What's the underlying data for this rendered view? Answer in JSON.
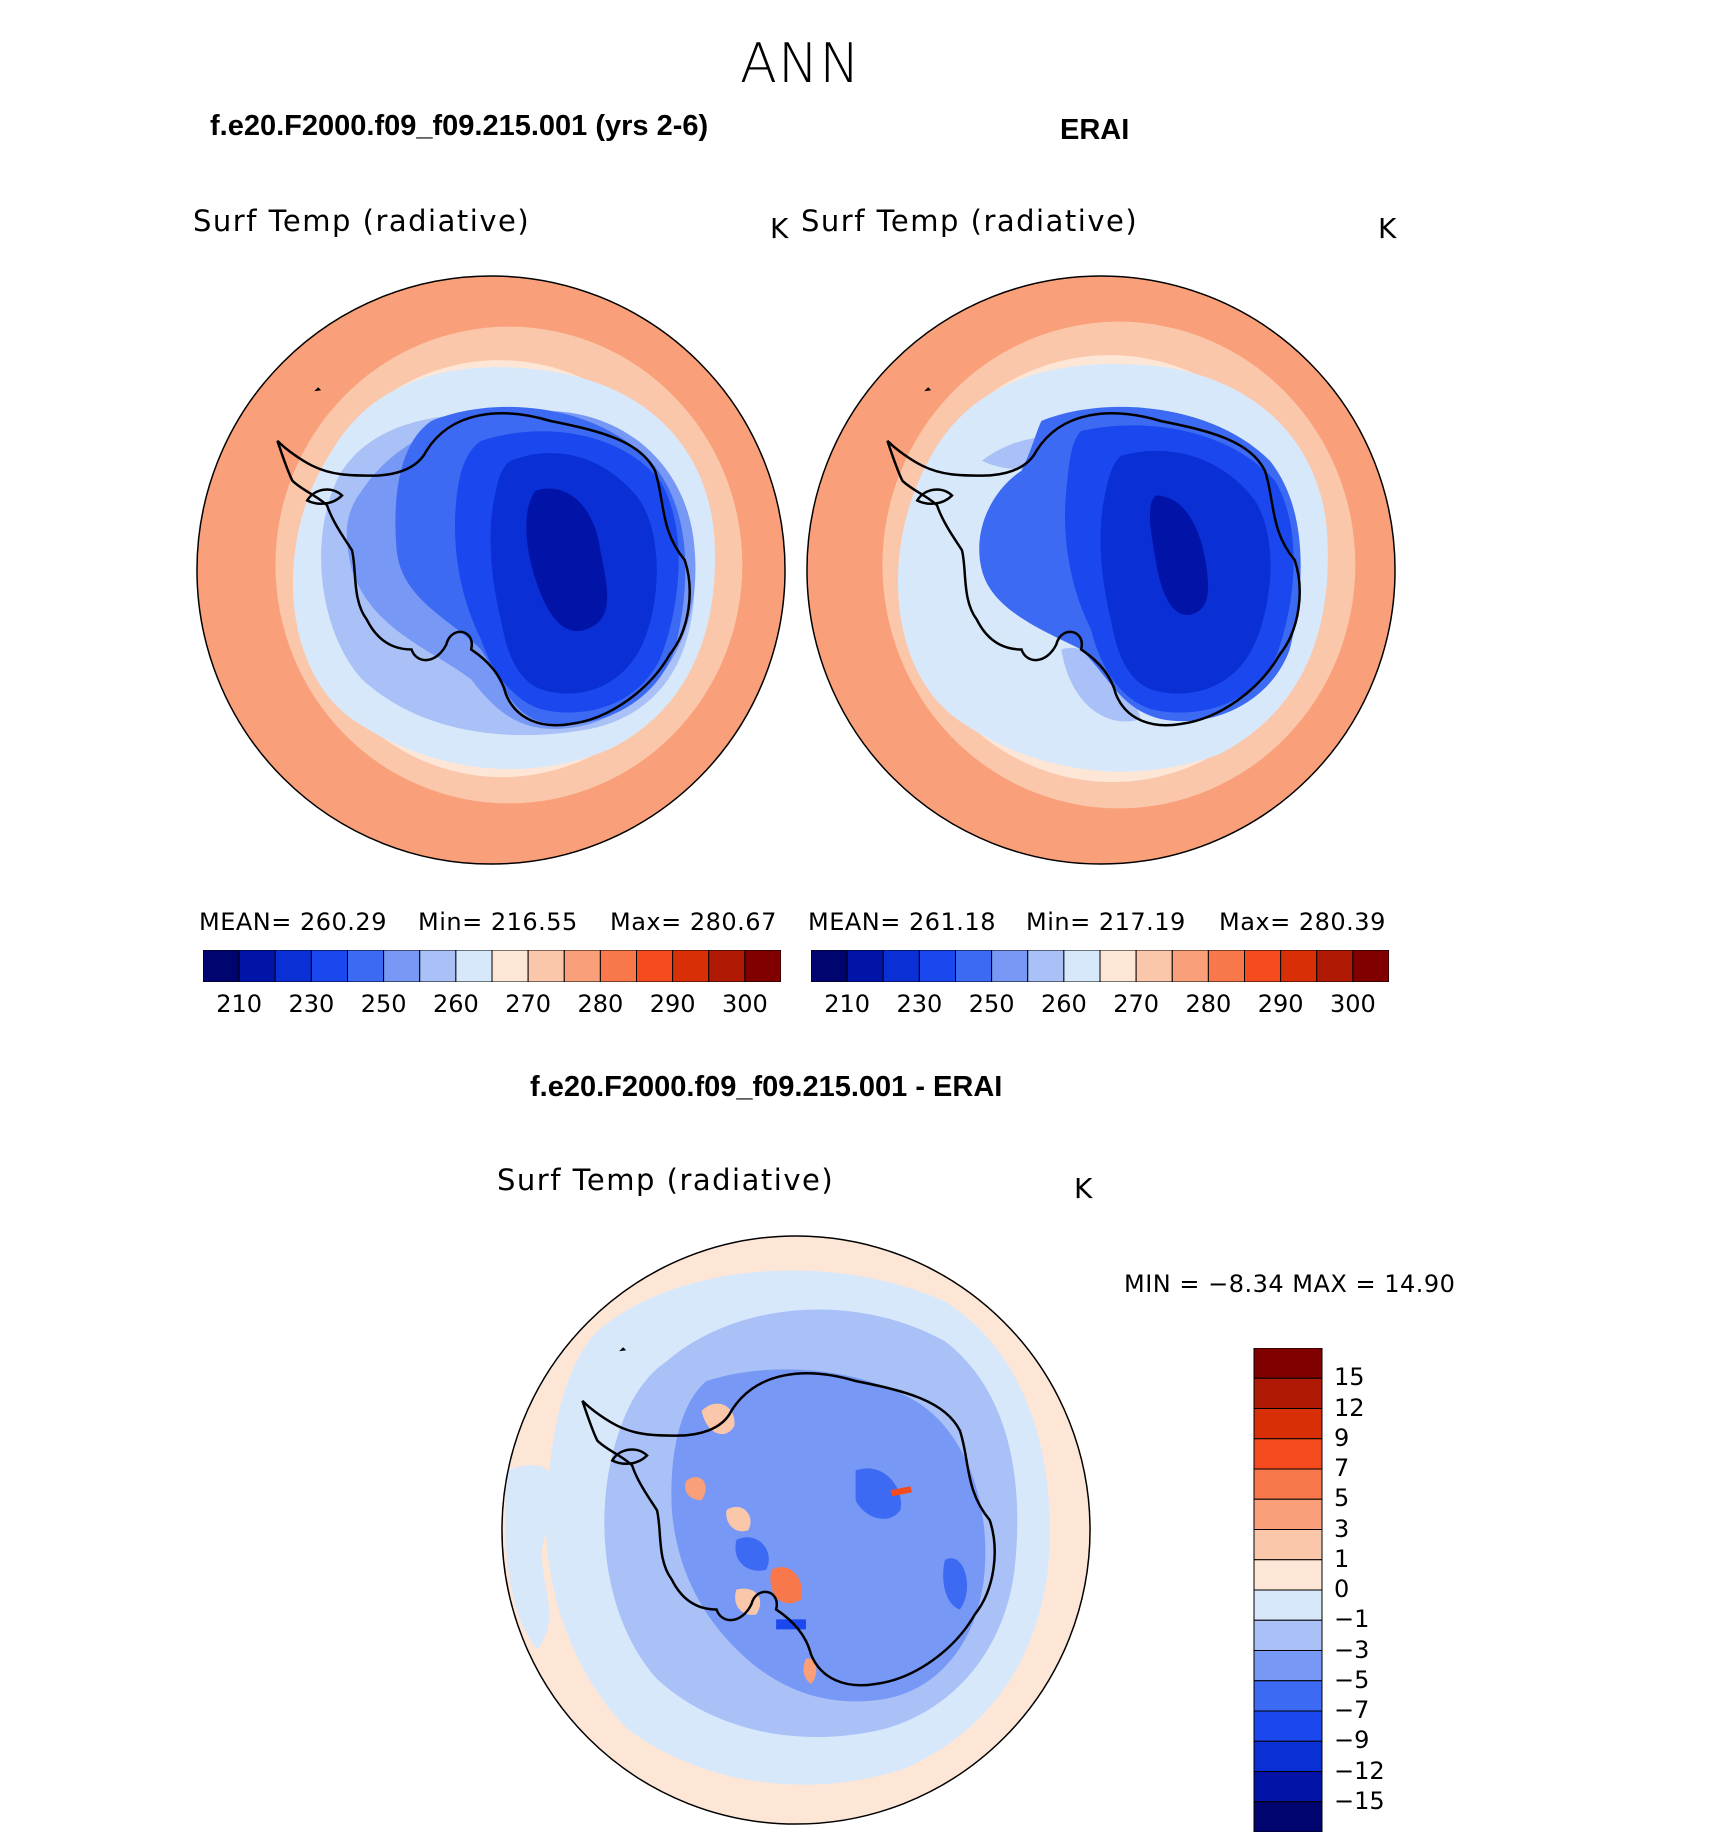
{
  "figure": {
    "title": "ANN"
  },
  "panels": [
    {
      "case_title": "f.e20.F2000.f09_f09.215.001 (yrs 2-6)",
      "variable": "Surf Temp (radiative)",
      "units": "K",
      "stats": {
        "mean": "MEAN=  260.29",
        "min": "Min=  216.55",
        "max": "Max=  280.67"
      }
    },
    {
      "case_title": "ERAI",
      "variable": "Surf Temp (radiative)",
      "units": "K",
      "stats": {
        "mean": "MEAN=  261.18",
        "min": "Min=  217.19",
        "max": "Max=  280.39"
      }
    }
  ],
  "diff_panel": {
    "case_title": "f.e20.F2000.f09_f09.215.001 - ERAI",
    "variable": "Surf Temp (radiative)",
    "units": "K",
    "minmax": "MIN =    −8.34  MAX =    14.90"
  },
  "colorbar_abs": {
    "colors": [
      "#00046e",
      "#0213a8",
      "#0a2fd4",
      "#1a48ee",
      "#3c6af2",
      "#7898f5",
      "#a9c1f7",
      "#d8e8fb",
      "#fde6d6",
      "#fbc7ab",
      "#f9a07a",
      "#f8784c",
      "#f64b1e",
      "#d92f07",
      "#b01a05",
      "#800000"
    ],
    "labels": [
      "210",
      "230",
      "250",
      "260",
      "270",
      "280",
      "290",
      "300"
    ]
  },
  "colorbar_diff": {
    "colors": [
      "#800000",
      "#b01a05",
      "#d92f07",
      "#f64b1e",
      "#f8784c",
      "#f9a07a",
      "#fbc7ab",
      "#fde6d6",
      "#d8e8fb",
      "#a9c1f7",
      "#7898f5",
      "#3c6af2",
      "#1a48ee",
      "#0a2fd4",
      "#0213a8",
      "#00046e"
    ],
    "labels": [
      "15",
      "12",
      "9",
      "7",
      "5",
      "3",
      "1",
      "0",
      "−1",
      "−3",
      "−5",
      "−7",
      "−9",
      "−12",
      "−15"
    ]
  }
}
